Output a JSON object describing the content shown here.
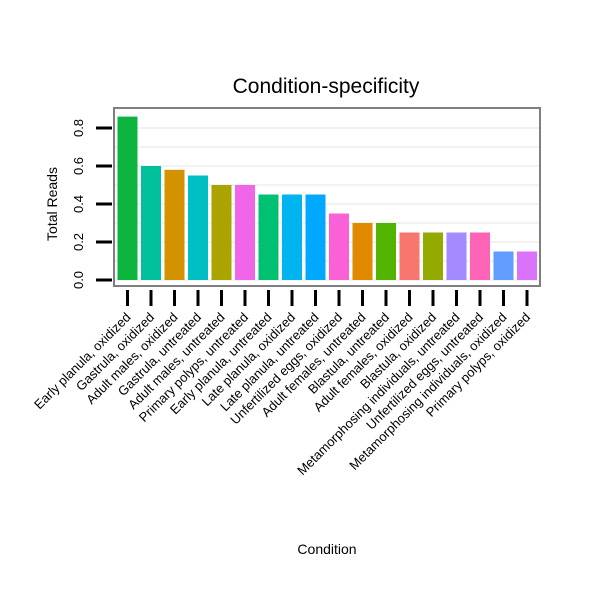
{
  "chart_data": {
    "type": "bar",
    "title": "Condition-specificity",
    "xlabel": "Condition",
    "ylabel": "Total Reads",
    "ylim": [
      0,
      0.93
    ],
    "yticks": [
      0.0,
      0.2,
      0.4,
      0.6,
      0.8
    ],
    "ytick_labels": [
      "0.0",
      "0.2",
      "0.4",
      "0.6",
      "0.8"
    ],
    "grid": true,
    "legend": "none",
    "categories": [
      "Early planula, oxidized",
      "Gastrula, oxidized",
      "Adult males, oxidized",
      "Gastrula, untreated",
      "Adult males, untreated",
      "Primary polyps, untreated",
      "Early planula, untreated",
      "Late planula, oxidized",
      "Late planula, untreated",
      "Unfertilized eggs, oxidized",
      "Adult females, untreated",
      "Blastula, untreated",
      "Adult females, oxidized",
      "Blastula, oxidized",
      "Metamorphosing individuals, untreated",
      "Unfertilized eggs, untreated",
      "Metamorphosing individuals, oxidized",
      "Primary polyps, oxidized"
    ],
    "values": [
      0.86,
      0.6,
      0.58,
      0.55,
      0.5,
      0.5,
      0.45,
      0.45,
      0.45,
      0.35,
      0.3,
      0.3,
      0.25,
      0.25,
      0.25,
      0.25,
      0.15,
      0.15
    ],
    "colors": [
      "#0cb63e",
      "#00c19b",
      "#d39200",
      "#00bfc4",
      "#aba300",
      "#f166e8",
      "#00c072",
      "#00b4ef",
      "#00a8ff",
      "#fb61d7",
      "#e18a00",
      "#53b400",
      "#f8766d",
      "#93aa00",
      "#a58aff",
      "#ff63b6",
      "#619cff",
      "#db72fb"
    ]
  }
}
